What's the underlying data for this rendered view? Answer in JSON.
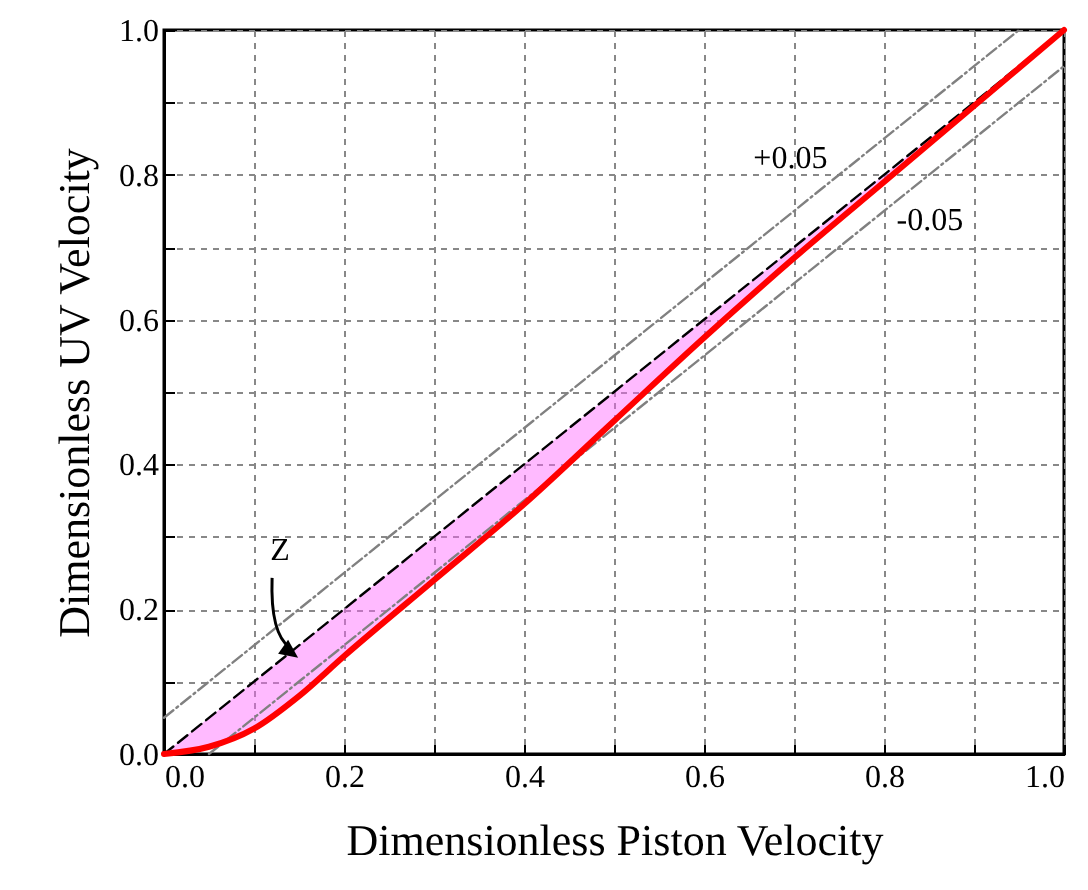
{
  "chart_data": {
    "type": "line",
    "xlabel": "Dimensionless Piston Velocity",
    "ylabel": "Dimensionless UV Velocity",
    "xlim": [
      0,
      1
    ],
    "ylim": [
      0,
      1
    ],
    "xticks": [
      {
        "value": 0,
        "label": "0.0"
      },
      {
        "value": 0.1,
        "label": null
      },
      {
        "value": 0.2,
        "label": "0.2"
      },
      {
        "value": 0.3,
        "label": null
      },
      {
        "value": 0.4,
        "label": "0.4"
      },
      {
        "value": 0.5,
        "label": null
      },
      {
        "value": 0.6,
        "label": "0.6"
      },
      {
        "value": 0.7,
        "label": null
      },
      {
        "value": 0.8,
        "label": "0.8"
      },
      {
        "value": 0.9,
        "label": null
      },
      {
        "value": 1,
        "label": "1.0"
      }
    ],
    "yticks": [
      {
        "value": 0,
        "label": "0.0"
      },
      {
        "value": 0.1,
        "label": null
      },
      {
        "value": 0.2,
        "label": "0.2"
      },
      {
        "value": 0.3,
        "label": null
      },
      {
        "value": 0.4,
        "label": "0.4"
      },
      {
        "value": 0.5,
        "label": null
      },
      {
        "value": 0.6,
        "label": "0.6"
      },
      {
        "value": 0.7,
        "label": null
      },
      {
        "value": 0.8,
        "label": "0.8"
      },
      {
        "value": 0.9,
        "label": null
      },
      {
        "value": 1,
        "label": "1.0"
      }
    ],
    "grid": true,
    "series": [
      {
        "color": "#000000",
        "line_style": "dashed",
        "x": [
          0,
          1
        ],
        "values": [
          0,
          1
        ]
      },
      {
        "color": "#808080",
        "line_style": "dotted",
        "x": [
          0,
          0.95
        ],
        "values": [
          0.05,
          1
        ]
      },
      {
        "color": "#808080",
        "line_style": "dotted",
        "x": [
          0.05,
          1
        ],
        "values": [
          0,
          0.95
        ]
      },
      {
        "color": "#ff0000",
        "line_style": "solid",
        "x": [
          0,
          0.05,
          0.1,
          0.15,
          0.2,
          0.3,
          0.4,
          0.5,
          0.6,
          0.7,
          0.8,
          0.9,
          1
        ],
        "values": [
          0,
          0.01,
          0.035,
          0.08,
          0.135,
          0.24,
          0.345,
          0.46,
          0.575,
          0.685,
          0.79,
          0.895,
          1
        ],
        "lower": [
          0,
          0.01,
          0.035,
          0.08,
          0.135,
          0.24,
          0.345,
          0.46,
          0.575,
          0.685,
          0.79,
          0.895,
          1
        ],
        "upper": [
          0,
          0.05,
          0.1,
          0.15,
          0.2,
          0.3,
          0.4,
          0.5,
          0.6,
          0.7,
          0.8,
          0.9,
          1
        ]
      }
    ],
    "annotations": [
      "+0.05",
      "-0.05",
      "Z"
    ]
  }
}
